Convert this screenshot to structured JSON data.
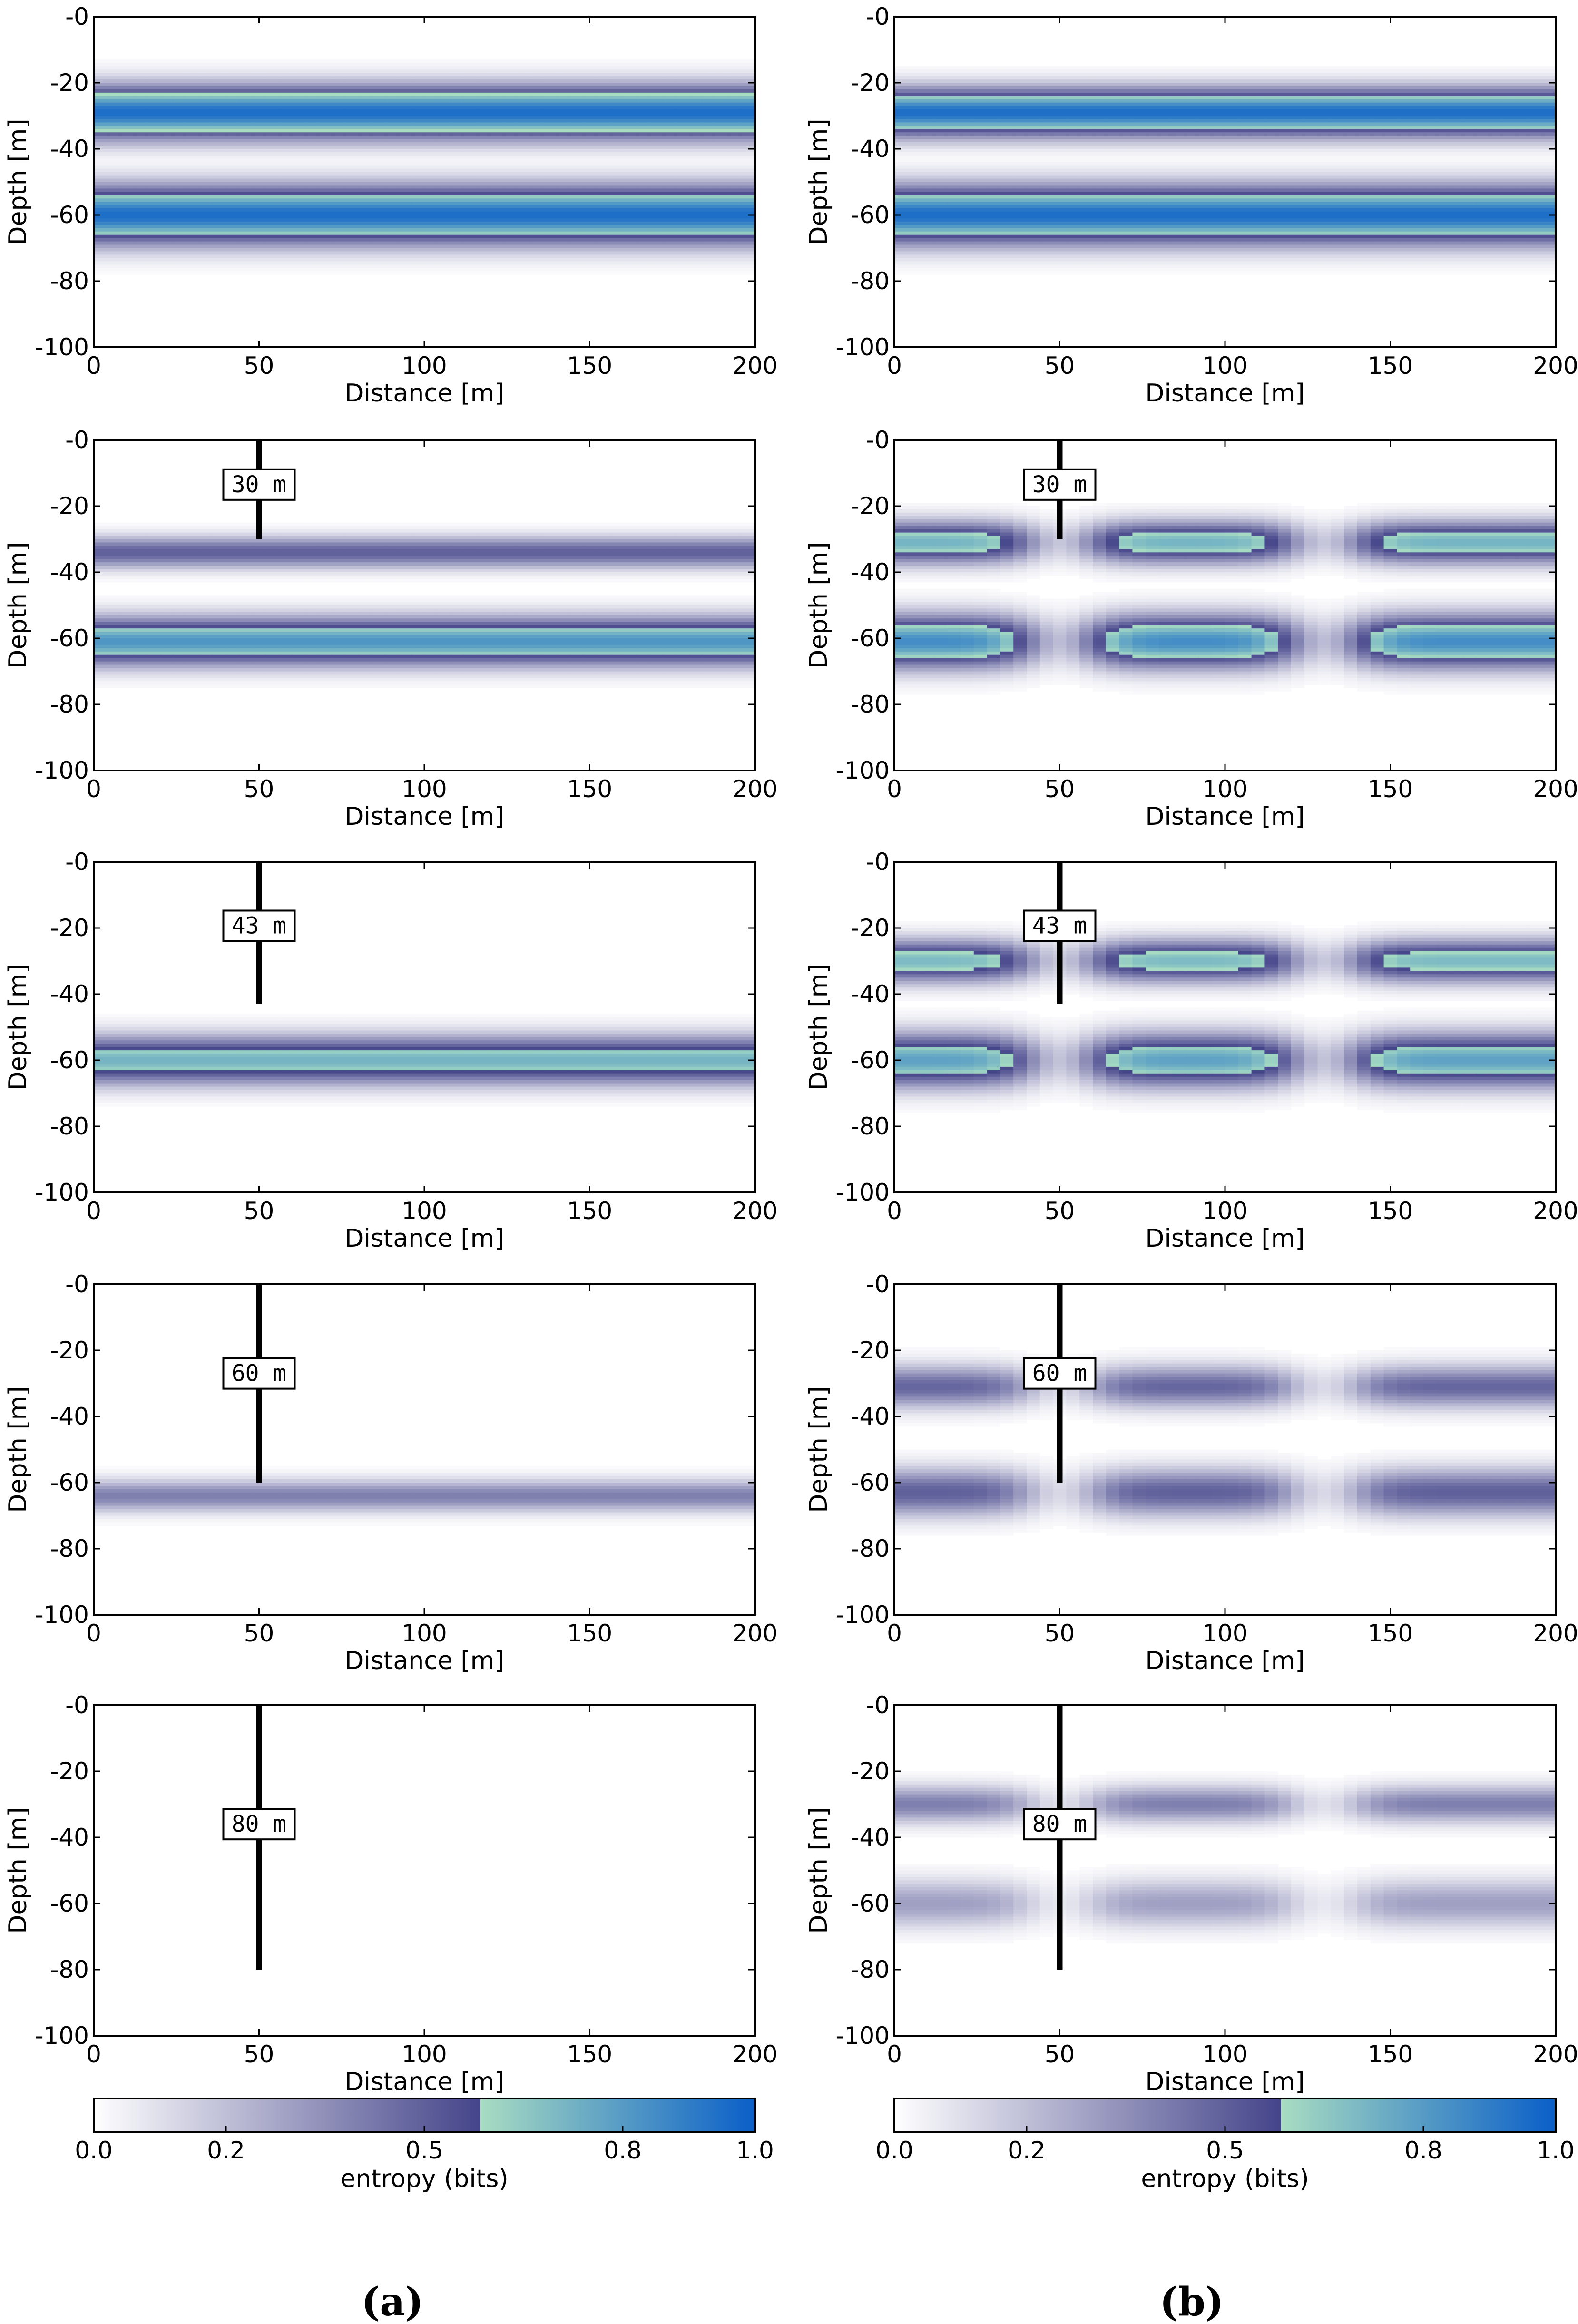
{
  "chart_data": [
    {
      "type": "heatmap",
      "column": "a",
      "row": 1,
      "xlabel": "Distance [m]",
      "ylabel": "Depth [m]",
      "xlim": [
        0,
        200
      ],
      "ylim": [
        -100,
        0
      ],
      "xticks": [
        "0",
        "50",
        "100",
        "150",
        "200"
      ],
      "yticks": [
        "-0",
        "-20",
        "-40",
        "-60",
        "-80",
        "-100"
      ],
      "well": null,
      "bands": [
        {
          "depth": -29,
          "halfwidth": 10,
          "peak": 0.95,
          "lateral": "uniform"
        },
        {
          "depth": -60,
          "halfwidth": 11,
          "peak": 0.95,
          "lateral": "uniform"
        }
      ]
    },
    {
      "type": "heatmap",
      "column": "b",
      "row": 1,
      "xlabel": "Distance [m]",
      "ylabel": "Depth [m]",
      "xlim": [
        0,
        200
      ],
      "ylim": [
        -100,
        0
      ],
      "xticks": [
        "0",
        "50",
        "100",
        "150",
        "200"
      ],
      "yticks": [
        "-0",
        "-20",
        "-40",
        "-60",
        "-80",
        "-100"
      ],
      "well": null,
      "bands": [
        {
          "depth": -29,
          "halfwidth": 9,
          "peak": 0.95,
          "lateral": "uniform"
        },
        {
          "depth": -60,
          "halfwidth": 11,
          "peak": 0.95,
          "lateral": "uniform"
        }
      ]
    },
    {
      "type": "heatmap",
      "column": "a",
      "row": 2,
      "xlabel": "Distance [m]",
      "ylabel": "Depth [m]",
      "xlim": [
        0,
        200
      ],
      "ylim": [
        -100,
        0
      ],
      "xticks": [
        "0",
        "50",
        "100",
        "150",
        "200"
      ],
      "yticks": [
        "-0",
        "-20",
        "-40",
        "-60",
        "-80",
        "-100"
      ],
      "well": {
        "x": 50,
        "depth": -30,
        "label": "30 m"
      },
      "bands": [
        {
          "depth": -34,
          "halfwidth": 6,
          "peak": 0.5,
          "lateral": "uniform"
        },
        {
          "depth": -61,
          "halfwidth": 9,
          "peak": 0.82,
          "lateral": "uniform"
        }
      ]
    },
    {
      "type": "heatmap",
      "column": "b",
      "row": 2,
      "xlabel": "Distance [m]",
      "ylabel": "Depth [m]",
      "xlim": [
        0,
        200
      ],
      "ylim": [
        -100,
        0
      ],
      "xticks": [
        "0",
        "50",
        "100",
        "150",
        "200"
      ],
      "yticks": [
        "-0",
        "-20",
        "-40",
        "-60",
        "-80",
        "-100"
      ],
      "well": {
        "x": 50,
        "depth": -30,
        "label": "30 m"
      },
      "bands": [
        {
          "depth": -31,
          "halfwidth": 8,
          "peak": 0.72,
          "lateral": "lobes"
        },
        {
          "depth": -61,
          "halfwidth": 10,
          "peak": 0.85,
          "lateral": "lobes"
        }
      ]
    },
    {
      "type": "heatmap",
      "column": "a",
      "row": 3,
      "xlabel": "Distance [m]",
      "ylabel": "Depth [m]",
      "xlim": [
        0,
        200
      ],
      "ylim": [
        -100,
        0
      ],
      "xticks": [
        "0",
        "50",
        "100",
        "150",
        "200"
      ],
      "yticks": [
        "-0",
        "-20",
        "-40",
        "-60",
        "-80",
        "-100"
      ],
      "well": {
        "x": 50,
        "depth": -43,
        "label": "43 m"
      },
      "bands": [
        {
          "depth": -60,
          "halfwidth": 9,
          "peak": 0.72,
          "lateral": "uniform"
        }
      ]
    },
    {
      "type": "heatmap",
      "column": "b",
      "row": 3,
      "xlabel": "Distance [m]",
      "ylabel": "Depth [m]",
      "xlim": [
        0,
        200
      ],
      "ylim": [
        -100,
        0
      ],
      "xticks": [
        "0",
        "50",
        "100",
        "150",
        "200"
      ],
      "yticks": [
        "-0",
        "-20",
        "-40",
        "-60",
        "-80",
        "-100"
      ],
      "well": {
        "x": 50,
        "depth": -43,
        "label": "43 m"
      },
      "bands": [
        {
          "depth": -30,
          "halfwidth": 8,
          "peak": 0.7,
          "lateral": "lobes"
        },
        {
          "depth": -60,
          "halfwidth": 10,
          "peak": 0.78,
          "lateral": "lobes"
        }
      ]
    },
    {
      "type": "heatmap",
      "column": "a",
      "row": 4,
      "xlabel": "Distance [m]",
      "ylabel": "Depth [m]",
      "xlim": [
        0,
        200
      ],
      "ylim": [
        -100,
        0
      ],
      "xticks": [
        "0",
        "50",
        "100",
        "150",
        "200"
      ],
      "yticks": [
        "-0",
        "-20",
        "-40",
        "-60",
        "-80",
        "-100"
      ],
      "well": {
        "x": 50,
        "depth": -60,
        "label": "60 m"
      },
      "bands": [
        {
          "depth": -64,
          "halfwidth": 6,
          "peak": 0.4,
          "lateral": "uniform"
        }
      ]
    },
    {
      "type": "heatmap",
      "column": "b",
      "row": 4,
      "xlabel": "Distance [m]",
      "ylabel": "Depth [m]",
      "xlim": [
        0,
        200
      ],
      "ylim": [
        -100,
        0
      ],
      "xticks": [
        "0",
        "50",
        "100",
        "150",
        "200"
      ],
      "yticks": [
        "-0",
        "-20",
        "-40",
        "-60",
        "-80",
        "-100"
      ],
      "well": {
        "x": 50,
        "depth": -60,
        "label": "60 m"
      },
      "bands": [
        {
          "depth": -31,
          "halfwidth": 8,
          "peak": 0.48,
          "lateral": "lobes"
        },
        {
          "depth": -63,
          "halfwidth": 9,
          "peak": 0.5,
          "lateral": "lobes"
        }
      ]
    },
    {
      "type": "heatmap",
      "column": "a",
      "row": 5,
      "xlabel": "Distance [m]",
      "ylabel": "Depth [m]",
      "xlim": [
        0,
        200
      ],
      "ylim": [
        -100,
        0
      ],
      "xticks": [
        "0",
        "50",
        "100",
        "150",
        "200"
      ],
      "yticks": [
        "-0",
        "-20",
        "-40",
        "-60",
        "-80",
        "-100"
      ],
      "well": {
        "x": 50,
        "depth": -80,
        "label": "80 m"
      },
      "bands": []
    },
    {
      "type": "heatmap",
      "column": "b",
      "row": 5,
      "xlabel": "Distance [m]",
      "ylabel": "Depth [m]",
      "xlim": [
        0,
        200
      ],
      "ylim": [
        -100,
        0
      ],
      "xticks": [
        "0",
        "50",
        "100",
        "150",
        "200"
      ],
      "yticks": [
        "-0",
        "-20",
        "-40",
        "-60",
        "-80",
        "-100"
      ],
      "well": {
        "x": 50,
        "depth": -80,
        "label": "80 m"
      },
      "bands": [
        {
          "depth": -30,
          "halfwidth": 7,
          "peak": 0.4,
          "lateral": "lobes"
        },
        {
          "depth": -60,
          "halfwidth": 9,
          "peak": 0.3,
          "lateral": "lobes"
        }
      ]
    }
  ],
  "colorbar": {
    "label": "entropy (bits)",
    "range": [
      0,
      1
    ],
    "tick_values": [
      0.0,
      0.2,
      0.5,
      0.8,
      1.0
    ],
    "tick_labels": [
      "0.0",
      "0.2",
      "0.5",
      "0.8",
      "1.0"
    ],
    "threshold": 0.585,
    "colors": {
      "low_start": "#ffffff",
      "low_end": "#44448a",
      "high_start": "#a8dcc2",
      "high_end": "#0a5fc8"
    }
  },
  "captions": [
    "(a)",
    "(b)"
  ]
}
